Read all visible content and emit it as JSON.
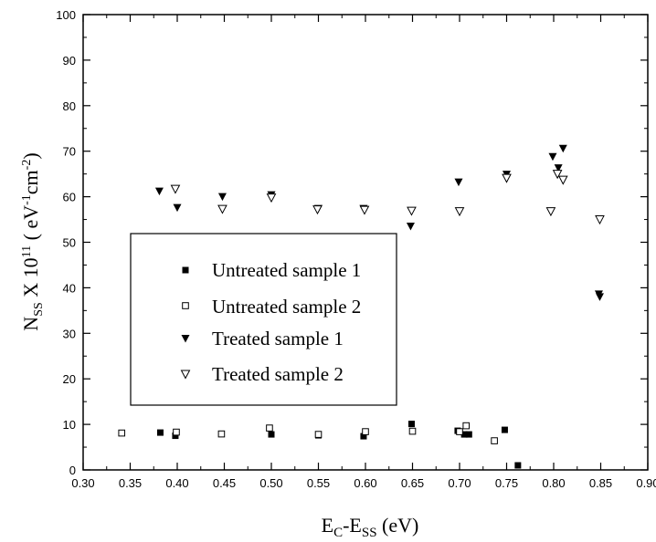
{
  "chart_data": {
    "type": "scatter",
    "xlabel": {
      "main": "E",
      "sub1": "C",
      "mid": "-E",
      "sub2": "SS",
      "tail": " (eV)"
    },
    "ylabel": {
      "main": "N",
      "sub1": "SS",
      "mid": " X 10",
      "sup1": "11",
      "mid2": " ( eV",
      "sup2": "-1",
      "mid3": "cm",
      "sup3": "-2",
      "tail": ")"
    },
    "xlim": [
      0.3,
      0.9
    ],
    "ylim": [
      0,
      100
    ],
    "xticks": [
      "0.30",
      "0.35",
      "0.40",
      "0.45",
      "0.50",
      "0.55",
      "0.60",
      "0.65",
      "0.70",
      "0.75",
      "0.80",
      "0.85",
      "0.90"
    ],
    "yticks": [
      "0",
      "10",
      "20",
      "30",
      "40",
      "50",
      "60",
      "70",
      "80",
      "90",
      "100"
    ],
    "grid": false,
    "legend_position": "center-left",
    "series": [
      {
        "name": "Untreated sample 1",
        "marker": "square-filled",
        "points": [
          [
            0.382,
            8.2
          ],
          [
            0.398,
            7.5
          ],
          [
            0.5,
            7.8
          ],
          [
            0.55,
            7.6
          ],
          [
            0.598,
            7.4
          ],
          [
            0.649,
            10.1
          ],
          [
            0.698,
            8.6
          ],
          [
            0.705,
            7.8
          ],
          [
            0.71,
            7.8
          ],
          [
            0.748,
            8.8
          ],
          [
            0.762,
            1.0
          ]
        ]
      },
      {
        "name": "Untreated sample 2",
        "marker": "square-open",
        "points": [
          [
            0.341,
            8.1
          ],
          [
            0.399,
            8.3
          ],
          [
            0.447,
            7.9
          ],
          [
            0.498,
            9.2
          ],
          [
            0.55,
            7.8
          ],
          [
            0.6,
            8.4
          ],
          [
            0.65,
            8.5
          ],
          [
            0.7,
            8.4
          ],
          [
            0.707,
            9.7
          ],
          [
            0.737,
            6.4
          ]
        ]
      },
      {
        "name": "Treated sample 1",
        "marker": "triangle-down-filled",
        "points": [
          [
            0.381,
            61.2
          ],
          [
            0.4,
            57.6
          ],
          [
            0.448,
            60.0
          ],
          [
            0.5,
            60.4
          ],
          [
            0.55,
            57.4
          ],
          [
            0.598,
            57.4
          ],
          [
            0.648,
            53.5
          ],
          [
            0.699,
            63.2
          ],
          [
            0.75,
            64.9
          ],
          [
            0.799,
            68.8
          ],
          [
            0.805,
            66.3
          ],
          [
            0.81,
            70.6
          ],
          [
            0.848,
            38.6
          ],
          [
            0.849,
            38.0
          ]
        ]
      },
      {
        "name": "Treated sample 2",
        "marker": "triangle-down-open",
        "points": [
          [
            0.398,
            61.7
          ],
          [
            0.448,
            57.3
          ],
          [
            0.5,
            59.8
          ],
          [
            0.549,
            57.2
          ],
          [
            0.599,
            57.1
          ],
          [
            0.649,
            56.9
          ],
          [
            0.7,
            56.8
          ],
          [
            0.75,
            64.1
          ],
          [
            0.797,
            56.8
          ],
          [
            0.804,
            65.0
          ],
          [
            0.81,
            63.7
          ],
          [
            0.849,
            55.0
          ]
        ]
      }
    ]
  }
}
